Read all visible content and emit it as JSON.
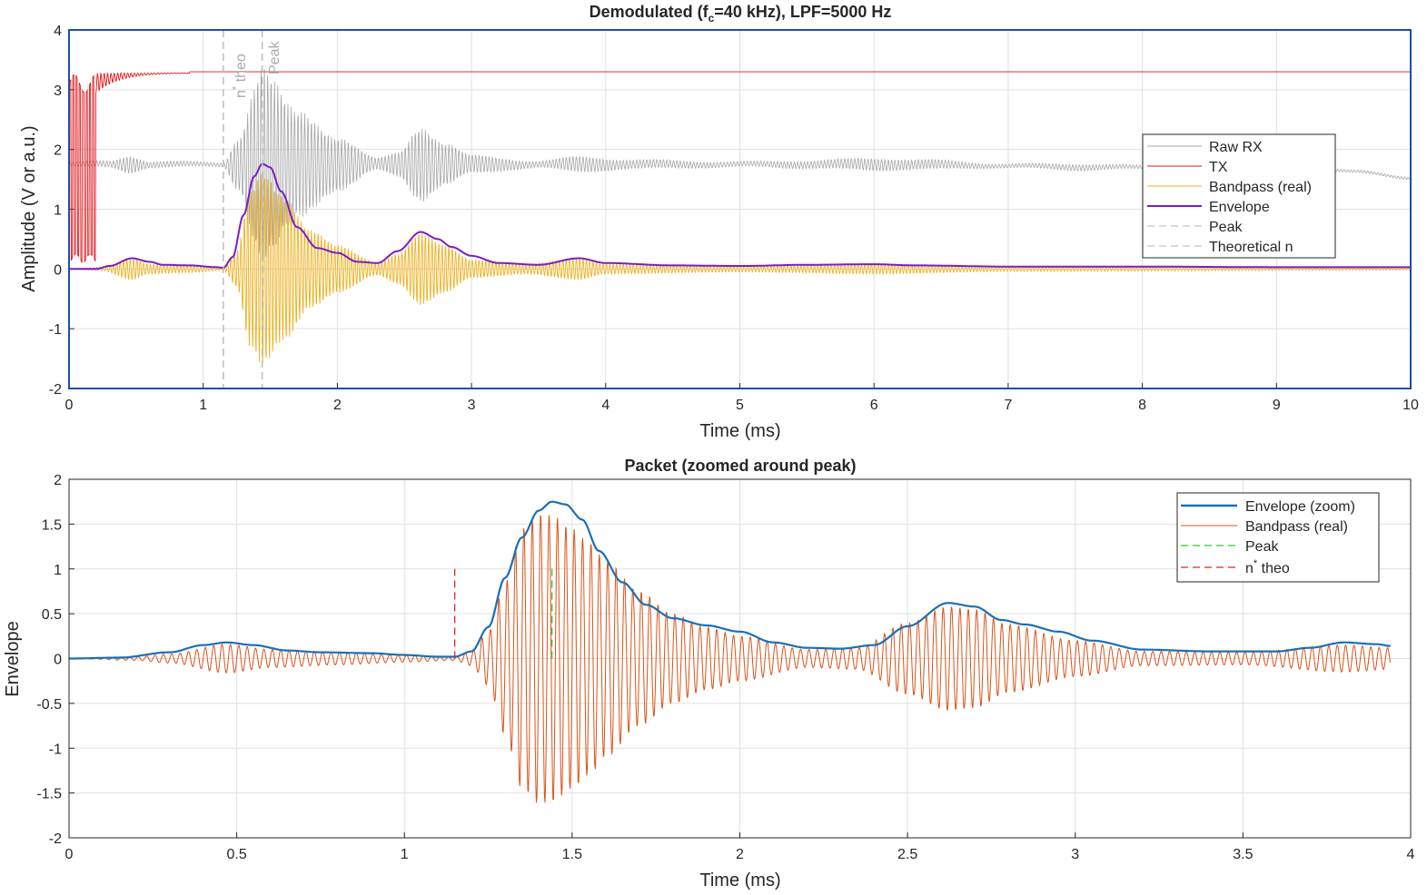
{
  "colors": {
    "raw_rx": "#a6a6a6",
    "tx": "#e0161b",
    "bandpass_top": "#edb120",
    "envelope_top": "#7e1cc4",
    "marker_gray": "#bdbdbd",
    "envelope_zoom": "#1a6fb8",
    "bandpass_zoom": "#d95319",
    "peak_zoom": "#33cc33",
    "theo_zoom": "#d62728",
    "axes_box_top": "#1f4fa8",
    "grid": "#e0e0e0"
  },
  "chart_data": [
    {
      "type": "line",
      "title_main": "Demodulated  (f",
      "title_sub": "c",
      "title_rest": "=40  kHz),  LPF=5000  Hz",
      "xlabel": "Time (ms)",
      "ylabel": "Amplitude (V or a.u.)",
      "xlim": [
        0,
        10
      ],
      "ylim": [
        -2,
        4
      ],
      "xticks": [
        "0",
        "1",
        "2",
        "3",
        "4",
        "5",
        "6",
        "7",
        "8",
        "9",
        "10"
      ],
      "yticks": [
        "-2",
        "-1",
        "0",
        "1",
        "2",
        "3",
        "4"
      ],
      "grid": true,
      "legend_position": "right",
      "legend": [
        "Raw RX",
        "TX",
        "Bandpass (real)",
        "Envelope",
        "Peak",
        "Theoretical n"
      ],
      "vlines": [
        {
          "name": "Theoretical n",
          "x": 1.15,
          "label_main": "n",
          "label_sup": "*",
          "label_rest": " theo"
        },
        {
          "name": "Peak",
          "x": 1.44,
          "label_main": "Peak",
          "label_sup": "",
          "label_rest": ""
        }
      ],
      "series": [
        {
          "name": "Raw RX",
          "kind": "oscillating",
          "baseline": 1.75,
          "envelope_points": [
            [
              0,
              0.03
            ],
            [
              0.3,
              0.05
            ],
            [
              0.45,
              0.14
            ],
            [
              0.6,
              0.05
            ],
            [
              1.15,
              0.03
            ],
            [
              1.25,
              0.4
            ],
            [
              1.44,
              1.6
            ],
            [
              1.7,
              0.9
            ],
            [
              2.0,
              0.45
            ],
            [
              2.3,
              0.1
            ],
            [
              2.45,
              0.2
            ],
            [
              2.62,
              0.62
            ],
            [
              2.8,
              0.35
            ],
            [
              3.0,
              0.15
            ],
            [
              3.5,
              0.05
            ],
            [
              3.8,
              0.13
            ],
            [
              4.2,
              0.07
            ],
            [
              5.0,
              0.04
            ],
            [
              5.5,
              0.06
            ],
            [
              6.0,
              0.1
            ],
            [
              6.3,
              0.08
            ],
            [
              7.0,
              0.03
            ],
            [
              7.5,
              0.05
            ],
            [
              8.0,
              0.03
            ],
            [
              10,
              0.02
            ]
          ],
          "drift": [
            [
              0,
              0
            ],
            [
              6,
              0
            ],
            [
              8,
              -0.05
            ],
            [
              9.6,
              -0.1
            ],
            [
              10,
              -0.25
            ]
          ]
        },
        {
          "name": "TX",
          "kind": "tx",
          "level": 3.3,
          "burst": [
            [
              0,
              0,
              3.3
            ],
            [
              0.2,
              0,
              3.3
            ],
            [
              0.22,
              2.9,
              3.3
            ],
            [
              0.5,
              3.15,
              3.3
            ],
            [
              0.9,
              3.28,
              3.3
            ]
          ]
        },
        {
          "name": "Bandpass (real)",
          "kind": "oscillating",
          "baseline": 0,
          "envelope_points": [
            [
              0,
              0
            ],
            [
              0.25,
              0.03
            ],
            [
              0.47,
              0.18
            ],
            [
              0.6,
              0.08
            ],
            [
              0.9,
              0.06
            ],
            [
              1.15,
              0.02
            ],
            [
              1.25,
              0.3
            ],
            [
              1.35,
              1.3
            ],
            [
              1.44,
              1.6
            ],
            [
              1.6,
              1.2
            ],
            [
              1.8,
              0.65
            ],
            [
              2.0,
              0.4
            ],
            [
              2.3,
              0.1
            ],
            [
              2.45,
              0.25
            ],
            [
              2.62,
              0.6
            ],
            [
              2.8,
              0.4
            ],
            [
              3.0,
              0.15
            ],
            [
              3.4,
              0.08
            ],
            [
              3.8,
              0.18
            ],
            [
              4.0,
              0.08
            ],
            [
              5.0,
              0.05
            ],
            [
              6.0,
              0.08
            ],
            [
              7.0,
              0.04
            ],
            [
              10,
              0.02
            ]
          ]
        },
        {
          "name": "Envelope",
          "kind": "smooth",
          "baseline": 0,
          "points": [
            [
              0,
              0
            ],
            [
              0.2,
              0
            ],
            [
              0.3,
              0.05
            ],
            [
              0.47,
              0.18
            ],
            [
              0.6,
              0.12
            ],
            [
              0.7,
              0.07
            ],
            [
              0.9,
              0.06
            ],
            [
              1.1,
              0.03
            ],
            [
              1.15,
              0.02
            ],
            [
              1.22,
              0.2
            ],
            [
              1.3,
              0.9
            ],
            [
              1.38,
              1.55
            ],
            [
              1.44,
              1.76
            ],
            [
              1.5,
              1.7
            ],
            [
              1.58,
              1.3
            ],
            [
              1.7,
              0.7
            ],
            [
              1.85,
              0.35
            ],
            [
              2.0,
              0.27
            ],
            [
              2.15,
              0.12
            ],
            [
              2.3,
              0.1
            ],
            [
              2.45,
              0.3
            ],
            [
              2.62,
              0.62
            ],
            [
              2.75,
              0.5
            ],
            [
              2.85,
              0.37
            ],
            [
              3.0,
              0.22
            ],
            [
              3.2,
              0.1
            ],
            [
              3.5,
              0.07
            ],
            [
              3.8,
              0.18
            ],
            [
              4.0,
              0.1
            ],
            [
              4.5,
              0.06
            ],
            [
              5.0,
              0.05
            ],
            [
              5.5,
              0.07
            ],
            [
              6.0,
              0.08
            ],
            [
              6.3,
              0.06
            ],
            [
              7.0,
              0.04
            ],
            [
              8.0,
              0.04
            ],
            [
              9.0,
              0.03
            ],
            [
              10,
              0.03
            ]
          ]
        }
      ]
    },
    {
      "type": "line",
      "title": "Packet (zoomed around peak)",
      "xlabel": "Time (ms)",
      "ylabel": "Envelope",
      "xlim": [
        0,
        4
      ],
      "ylim": [
        -2,
        2
      ],
      "xticks": [
        "0",
        "0.5",
        "1",
        "1.5",
        "2",
        "2.5",
        "3",
        "3.5",
        "4"
      ],
      "yticks": [
        "-2",
        "-1.5",
        "-1",
        "-0.5",
        "0",
        "0.5",
        "1",
        "1.5",
        "2"
      ],
      "grid": true,
      "legend_position": "top-right",
      "legend": [
        "Envelope (zoom)",
        "Bandpass (real)",
        "Peak",
        "n* theo"
      ],
      "legend_theo_main": "n",
      "legend_theo_sup": "*",
      "legend_theo_rest": " theo",
      "vlines": [
        {
          "name": "Peak",
          "x": 1.44,
          "y0": 0,
          "y1": 1.0
        },
        {
          "name": "n* theo",
          "x": 1.15,
          "y0": 0,
          "y1": 1.0
        }
      ],
      "series": [
        {
          "name": "Envelope (zoom)",
          "points": [
            [
              0,
              0
            ],
            [
              0.15,
              0.01
            ],
            [
              0.3,
              0.07
            ],
            [
              0.4,
              0.15
            ],
            [
              0.47,
              0.18
            ],
            [
              0.55,
              0.15
            ],
            [
              0.65,
              0.09
            ],
            [
              0.75,
              0.07
            ],
            [
              0.9,
              0.06
            ],
            [
              1.0,
              0.04
            ],
            [
              1.1,
              0.02
            ],
            [
              1.15,
              0.02
            ],
            [
              1.2,
              0.08
            ],
            [
              1.25,
              0.35
            ],
            [
              1.3,
              0.9
            ],
            [
              1.35,
              1.35
            ],
            [
              1.4,
              1.65
            ],
            [
              1.44,
              1.75
            ],
            [
              1.48,
              1.72
            ],
            [
              1.53,
              1.55
            ],
            [
              1.58,
              1.2
            ],
            [
              1.65,
              0.85
            ],
            [
              1.72,
              0.6
            ],
            [
              1.8,
              0.45
            ],
            [
              1.9,
              0.37
            ],
            [
              2.0,
              0.3
            ],
            [
              2.1,
              0.18
            ],
            [
              2.2,
              0.12
            ],
            [
              2.3,
              0.11
            ],
            [
              2.4,
              0.15
            ],
            [
              2.5,
              0.36
            ],
            [
              2.62,
              0.62
            ],
            [
              2.7,
              0.58
            ],
            [
              2.78,
              0.43
            ],
            [
              2.85,
              0.38
            ],
            [
              2.95,
              0.3
            ],
            [
              3.05,
              0.2
            ],
            [
              3.2,
              0.1
            ],
            [
              3.4,
              0.08
            ],
            [
              3.6,
              0.08
            ],
            [
              3.7,
              0.12
            ],
            [
              3.8,
              0.18
            ],
            [
              3.9,
              0.16
            ],
            [
              3.94,
              0.14
            ]
          ]
        },
        {
          "name": "Bandpass (real)",
          "envelope_points": [
            [
              0,
              0
            ],
            [
              0.2,
              0.02
            ],
            [
              0.3,
              0.05
            ],
            [
              0.47,
              0.16
            ],
            [
              0.6,
              0.1
            ],
            [
              0.8,
              0.07
            ],
            [
              1.0,
              0.04
            ],
            [
              1.15,
              0.02
            ],
            [
              1.2,
              0.08
            ],
            [
              1.25,
              0.3
            ],
            [
              1.3,
              0.85
            ],
            [
              1.35,
              1.45
            ],
            [
              1.4,
              1.62
            ],
            [
              1.44,
              1.6
            ],
            [
              1.5,
              1.45
            ],
            [
              1.55,
              1.3
            ],
            [
              1.6,
              1.1
            ],
            [
              1.7,
              0.75
            ],
            [
              1.8,
              0.5
            ],
            [
              1.9,
              0.35
            ],
            [
              2.0,
              0.25
            ],
            [
              2.2,
              0.1
            ],
            [
              2.35,
              0.12
            ],
            [
              2.5,
              0.4
            ],
            [
              2.62,
              0.58
            ],
            [
              2.7,
              0.55
            ],
            [
              2.8,
              0.38
            ],
            [
              3.0,
              0.2
            ],
            [
              3.2,
              0.08
            ],
            [
              3.5,
              0.07
            ],
            [
              3.8,
              0.15
            ],
            [
              3.94,
              0.12
            ]
          ]
        }
      ]
    }
  ]
}
